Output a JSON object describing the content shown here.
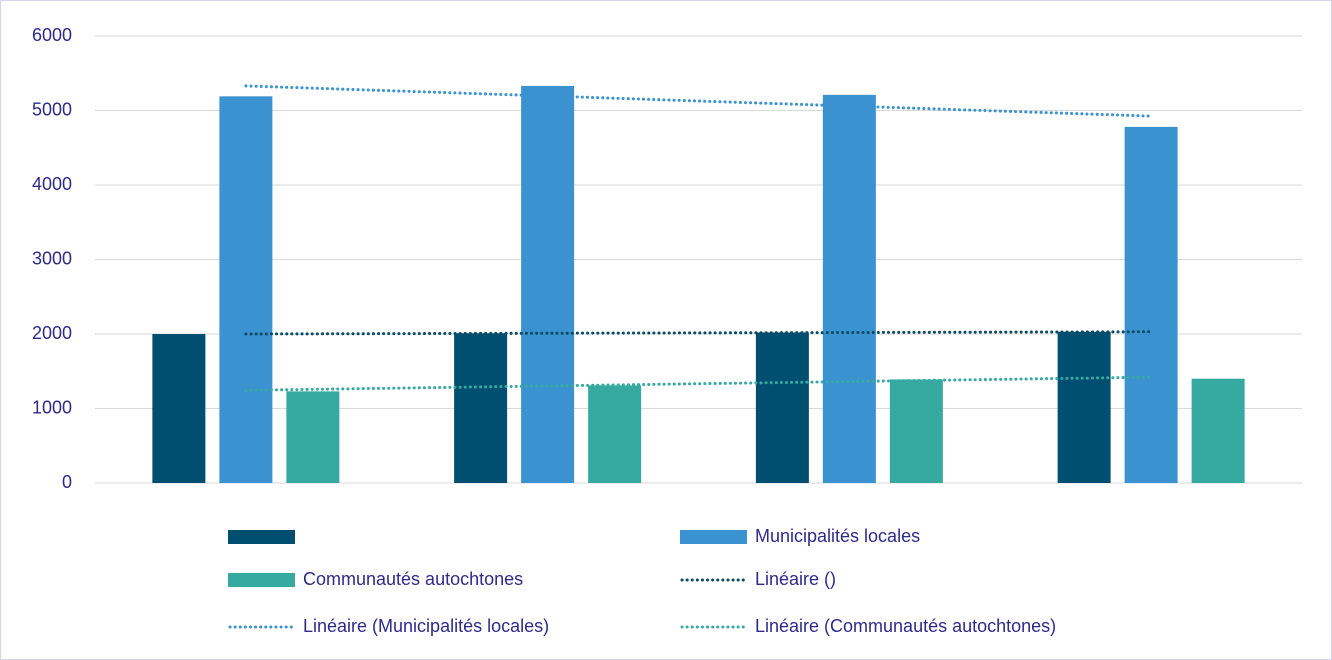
{
  "chart_data": {
    "type": "bar",
    "categories": [
      null,
      null,
      null,
      null
    ],
    "series": [
      {
        "name": null,
        "color": "#004f71",
        "values": [
          2000,
          2010,
          2020,
          2030
        ],
        "trendline": {
          "name": "Linéaire ()",
          "color": "#0b4a63"
        }
      },
      {
        "name": "Municipalités locales",
        "color": "#3a93d0",
        "values": [
          5190,
          5330,
          5210,
          4780
        ],
        "trendline": {
          "name": "Linéaire (Municipalités locales)",
          "color": "#3a93d0"
        }
      },
      {
        "name": "Communautés autochtones",
        "color": "#36a9a0",
        "values": [
          1230,
          1310,
          1390,
          1400
        ],
        "trendline": {
          "name": "Linéaire (Communautés autochtones)",
          "color": "#36a9a0"
        }
      }
    ],
    "ylim": [
      0,
      6000
    ],
    "yticks": [
      0,
      1000,
      2000,
      3000,
      4000,
      5000,
      6000
    ],
    "grid": true,
    "legend": "bottom"
  }
}
